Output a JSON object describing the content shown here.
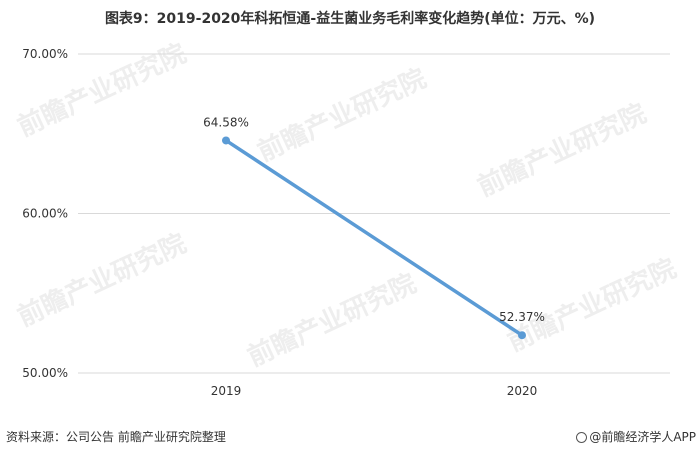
{
  "title": "图表9：2019-2020年科拓恒通-益生菌业务毛利率变化趋势(单位：万元、%)",
  "footer": {
    "source": "资料来源：公司公告 前瞻产业研究院整理",
    "brand": "@前瞻经济学人APP"
  },
  "watermark": "前瞻产业研究院",
  "colors": {
    "line": "#5b9bd5",
    "grid": "#d9d9d9",
    "text": "#333333"
  },
  "chart_data": {
    "type": "line",
    "categories": [
      "2019",
      "2020"
    ],
    "series": [
      {
        "values": [
          64.58,
          52.37
        ]
      }
    ],
    "data_labels": [
      "64.58%",
      "52.37%"
    ],
    "y_ticks": [
      "50.00%",
      "60.00%",
      "70.00%"
    ],
    "ylim": [
      50,
      70
    ],
    "grid": true
  }
}
